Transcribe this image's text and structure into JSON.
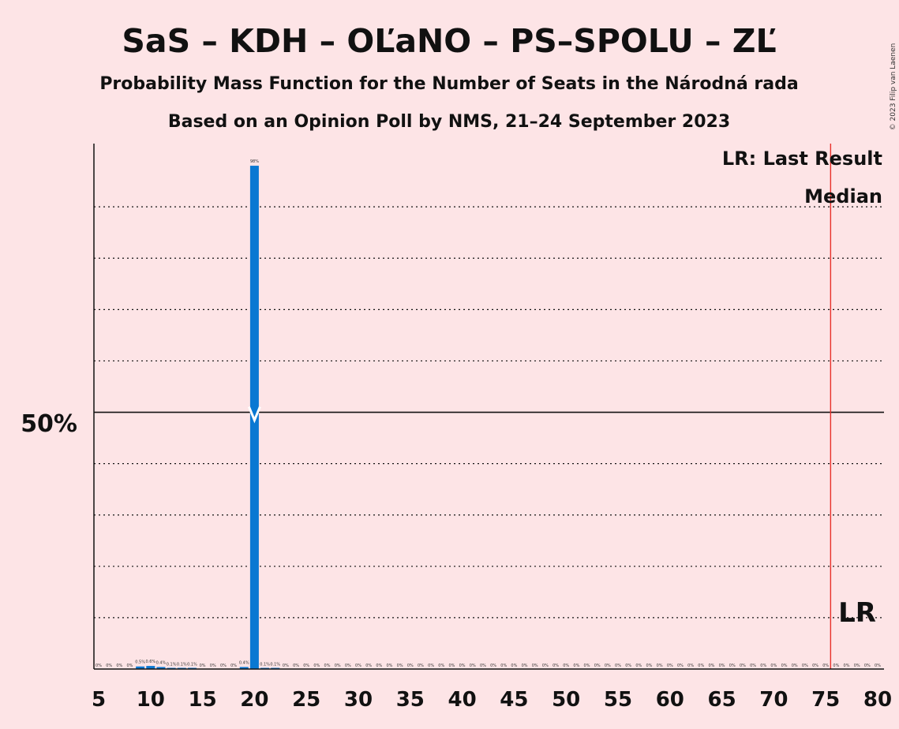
{
  "chart_data": {
    "type": "bar",
    "title": "SaS – KDH – OĽaNO – PS–SPOLU – ZĽ",
    "subtitle1": "Probability Mass Function for the Number of Seats in the Národná rada",
    "subtitle2": "Based on an Opinion Poll by NMS, 21–24 September 2023",
    "copyright": "© 2023 Filip van Laenen",
    "y_label": "50%",
    "ylim": [
      0,
      106
    ],
    "xlim": [
      5,
      80
    ],
    "x_ticks": [
      5,
      10,
      15,
      20,
      25,
      30,
      35,
      40,
      45,
      50,
      55,
      60,
      65,
      70,
      75,
      80
    ],
    "gridlines": [
      10,
      20,
      30,
      40,
      60,
      70,
      80,
      90
    ],
    "median_line": 50,
    "median_seat": 20,
    "last_result_seat": 76,
    "legend": {
      "lr": "LR: Last Result",
      "m": "Median"
    },
    "lr_label": "LR",
    "bar_color": "#0a78d2",
    "lr_color": "#e8302a",
    "points": [
      {
        "x": 5,
        "v": 0,
        "label": "0%"
      },
      {
        "x": 6,
        "v": 0,
        "label": "0%"
      },
      {
        "x": 7,
        "v": 0,
        "label": "0%"
      },
      {
        "x": 8,
        "v": 0,
        "label": "0%"
      },
      {
        "x": 9,
        "v": 0.5,
        "label": "0.5%"
      },
      {
        "x": 10,
        "v": 0.6,
        "label": "0.6%"
      },
      {
        "x": 11,
        "v": 0.4,
        "label": "0.4%"
      },
      {
        "x": 12,
        "v": 0.1,
        "label": "0.1%"
      },
      {
        "x": 13,
        "v": 0.1,
        "label": "0.1%"
      },
      {
        "x": 14,
        "v": 0.1,
        "label": "0.1%"
      },
      {
        "x": 15,
        "v": 0,
        "label": "0%"
      },
      {
        "x": 16,
        "v": 0,
        "label": "0%"
      },
      {
        "x": 17,
        "v": 0,
        "label": "0%"
      },
      {
        "x": 18,
        "v": 0,
        "label": "0%"
      },
      {
        "x": 19,
        "v": 0.4,
        "label": "0.4%"
      },
      {
        "x": 20,
        "v": 98,
        "label": "98%"
      },
      {
        "x": 21,
        "v": 0.1,
        "label": "0.1%"
      },
      {
        "x": 22,
        "v": 0.1,
        "label": "0.1%"
      },
      {
        "x": 23,
        "v": 0,
        "label": "0%"
      },
      {
        "x": 24,
        "v": 0,
        "label": "0%"
      },
      {
        "x": 25,
        "v": 0,
        "label": "0%"
      },
      {
        "x": 26,
        "v": 0,
        "label": "0%"
      },
      {
        "x": 27,
        "v": 0,
        "label": "0%"
      },
      {
        "x": 28,
        "v": 0,
        "label": "0%"
      },
      {
        "x": 29,
        "v": 0,
        "label": "0%"
      },
      {
        "x": 30,
        "v": 0,
        "label": "0%"
      },
      {
        "x": 31,
        "v": 0,
        "label": "0%"
      },
      {
        "x": 32,
        "v": 0,
        "label": "0%"
      },
      {
        "x": 33,
        "v": 0,
        "label": "0%"
      },
      {
        "x": 34,
        "v": 0,
        "label": "0%"
      },
      {
        "x": 35,
        "v": 0,
        "label": "0%"
      },
      {
        "x": 36,
        "v": 0,
        "label": "0%"
      },
      {
        "x": 37,
        "v": 0,
        "label": "0%"
      },
      {
        "x": 38,
        "v": 0,
        "label": "0%"
      },
      {
        "x": 39,
        "v": 0,
        "label": "0%"
      },
      {
        "x": 40,
        "v": 0,
        "label": "0%"
      },
      {
        "x": 41,
        "v": 0,
        "label": "0%"
      },
      {
        "x": 42,
        "v": 0,
        "label": "0%"
      },
      {
        "x": 43,
        "v": 0,
        "label": "0%"
      },
      {
        "x": 44,
        "v": 0,
        "label": "0%"
      },
      {
        "x": 45,
        "v": 0,
        "label": "0%"
      },
      {
        "x": 46,
        "v": 0,
        "label": "0%"
      },
      {
        "x": 47,
        "v": 0,
        "label": "0%"
      },
      {
        "x": 48,
        "v": 0,
        "label": "0%"
      },
      {
        "x": 49,
        "v": 0,
        "label": "0%"
      },
      {
        "x": 50,
        "v": 0,
        "label": "0%"
      },
      {
        "x": 51,
        "v": 0,
        "label": "0%"
      },
      {
        "x": 52,
        "v": 0,
        "label": "0%"
      },
      {
        "x": 53,
        "v": 0,
        "label": "0%"
      },
      {
        "x": 54,
        "v": 0,
        "label": "0%"
      },
      {
        "x": 55,
        "v": 0,
        "label": "0%"
      },
      {
        "x": 56,
        "v": 0,
        "label": "0%"
      },
      {
        "x": 57,
        "v": 0,
        "label": "0%"
      },
      {
        "x": 58,
        "v": 0,
        "label": "0%"
      },
      {
        "x": 59,
        "v": 0,
        "label": "0%"
      },
      {
        "x": 60,
        "v": 0,
        "label": "0%"
      },
      {
        "x": 61,
        "v": 0,
        "label": "0%"
      },
      {
        "x": 62,
        "v": 0,
        "label": "0%"
      },
      {
        "x": 63,
        "v": 0,
        "label": "0%"
      },
      {
        "x": 64,
        "v": 0,
        "label": "0%"
      },
      {
        "x": 65,
        "v": 0,
        "label": "0%"
      },
      {
        "x": 66,
        "v": 0,
        "label": "0%"
      },
      {
        "x": 67,
        "v": 0,
        "label": "0%"
      },
      {
        "x": 68,
        "v": 0,
        "label": "0%"
      },
      {
        "x": 69,
        "v": 0,
        "label": "0%"
      },
      {
        "x": 70,
        "v": 0,
        "label": "0%"
      },
      {
        "x": 71,
        "v": 0,
        "label": "0%"
      },
      {
        "x": 72,
        "v": 0,
        "label": "0%"
      },
      {
        "x": 73,
        "v": 0,
        "label": "0%"
      },
      {
        "x": 74,
        "v": 0,
        "label": "0%"
      },
      {
        "x": 75,
        "v": 0,
        "label": "0%"
      },
      {
        "x": 76,
        "v": 0,
        "label": "0%"
      },
      {
        "x": 77,
        "v": 0,
        "label": "0%"
      },
      {
        "x": 78,
        "v": 0,
        "label": "0%"
      },
      {
        "x": 79,
        "v": 0,
        "label": "0%"
      },
      {
        "x": 80,
        "v": 0,
        "label": "0%"
      }
    ]
  }
}
